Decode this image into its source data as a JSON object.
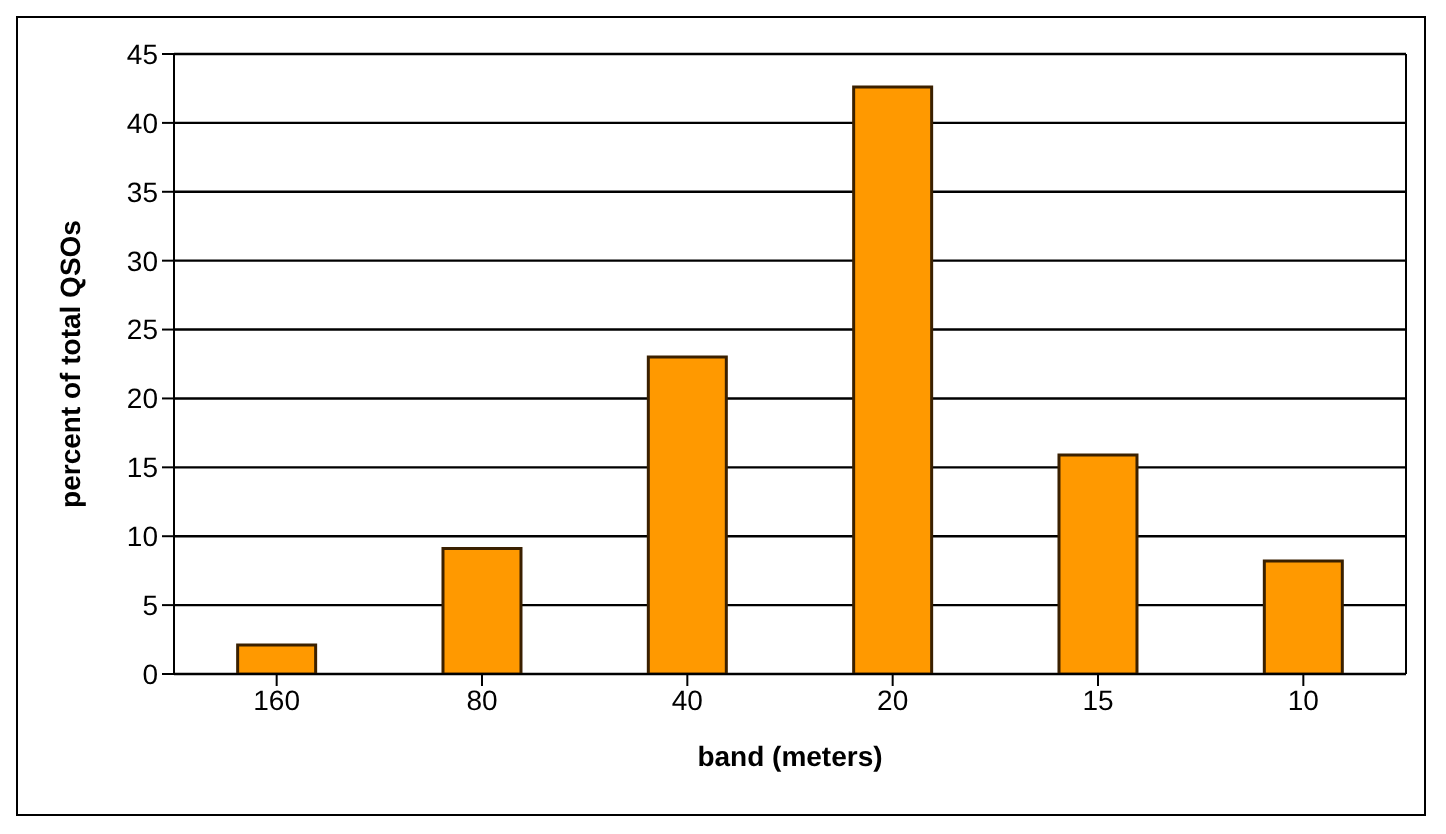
{
  "chart_data": {
    "type": "bar",
    "xlabel": "band (meters)",
    "ylabel": "percent of total QSOs",
    "categories": [
      "160",
      "80",
      "40",
      "20",
      "15",
      "10"
    ],
    "values": [
      2.1,
      9.1,
      23.0,
      42.6,
      15.9,
      8.2
    ],
    "color": "#ff9900",
    "ylim": [
      0,
      45
    ],
    "yticks": [
      0,
      5,
      10,
      15,
      20,
      25,
      30,
      35,
      40,
      45
    ],
    "grid": "y"
  }
}
